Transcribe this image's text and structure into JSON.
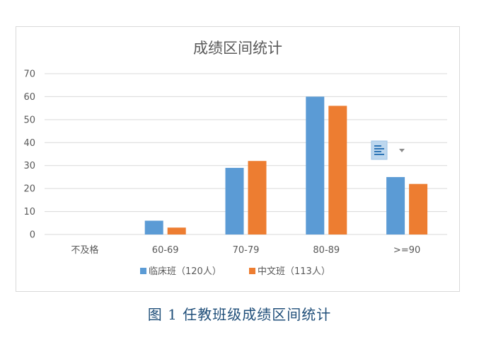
{
  "chart_data": {
    "type": "bar",
    "title": "成绩区间统计",
    "categories": [
      "不及格",
      "60-69",
      "70-79",
      "80-89",
      ">=90"
    ],
    "series": [
      {
        "name": "临床班（120人）",
        "values": [
          0,
          6,
          29,
          60,
          25
        ],
        "color": "#5b9bd5"
      },
      {
        "name": "中文班（113人）",
        "values": [
          0,
          3,
          32,
          56,
          22
        ],
        "color": "#ed7d31"
      }
    ],
    "ylim": [
      0,
      70
    ],
    "yticks": [
      0,
      10,
      20,
      30,
      40,
      50,
      60,
      70
    ],
    "grid": true,
    "legend": "bottom"
  },
  "caption": "图 1 任教班级成绩区间统计",
  "icons": {
    "paste_options": "paste-options-icon",
    "dropdown": "chevron-down-icon"
  }
}
